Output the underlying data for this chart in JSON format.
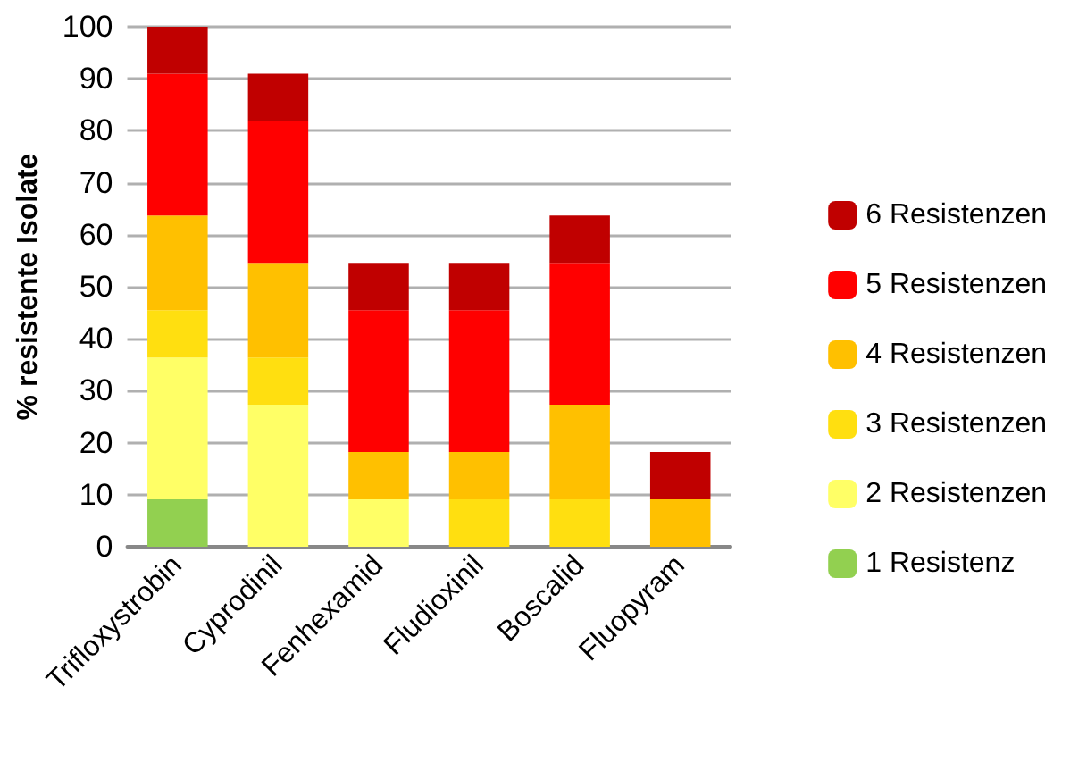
{
  "chart_data": {
    "type": "bar",
    "stacked": true,
    "ylabel": "% resistente Isolate",
    "categories": [
      "Trifloxystrobin",
      "Cyprodinil",
      "Fenhexamid",
      "Fludioxinil",
      "Boscalid",
      "Fluopyram"
    ],
    "series": [
      {
        "name": "1 Resistenz",
        "color": "#92d050",
        "values": [
          9.1,
          0,
          0,
          0,
          0,
          0
        ]
      },
      {
        "name": "2 Resistenzen",
        "color": "#ffff66",
        "values": [
          27.3,
          27.3,
          9.1,
          0,
          0,
          0
        ]
      },
      {
        "name": "3 Resistenzen",
        "color": "#ffdf10",
        "values": [
          9.1,
          9.1,
          0,
          9.1,
          9.1,
          0
        ]
      },
      {
        "name": "4 Resistenzen",
        "color": "#ffc000",
        "values": [
          18.2,
          18.2,
          9.1,
          9.1,
          18.2,
          9.1
        ]
      },
      {
        "name": "5 Resistenzen",
        "color": "#ff0000",
        "values": [
          27.3,
          27.3,
          27.3,
          27.3,
          27.3,
          0
        ]
      },
      {
        "name": "6 Resistenzen",
        "color": "#c00000",
        "values": [
          9.1,
          9.1,
          9.1,
          9.1,
          9.1,
          9.1
        ]
      }
    ],
    "ylim": [
      0,
      100
    ],
    "yticks": [
      0,
      10,
      20,
      30,
      40,
      50,
      60,
      70,
      80,
      90,
      100
    ],
    "grid": "y",
    "legend": "right"
  }
}
